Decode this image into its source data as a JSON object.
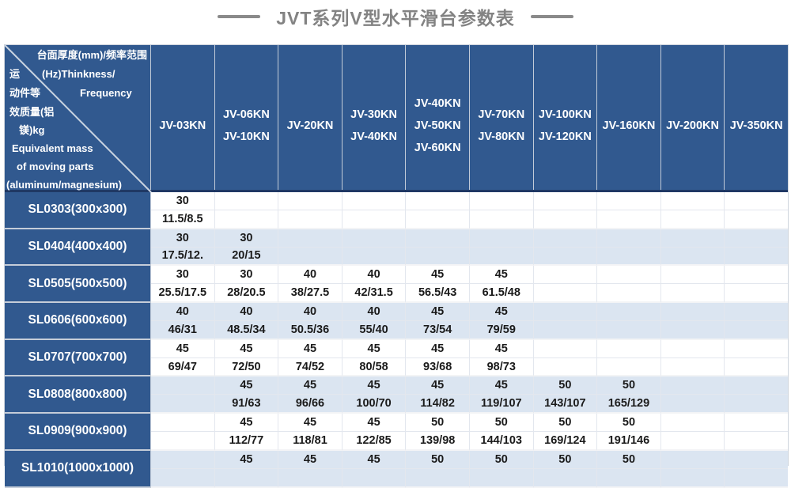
{
  "title": {
    "text": "JVT系列V型水平滑台参数表"
  },
  "colors": {
    "header_blue": "#31598F",
    "alt_row_blue": "#DBE5F1",
    "header_bottom_line": "#1F3864",
    "title_gray": "#838383",
    "data_text": "#1A1A1A"
  },
  "corner": {
    "top_lines": [
      "台面厚度(mm)/频率范围",
      "(Hz)Thinkness/",
      "Frequency"
    ],
    "bottom_lines": [
      "运",
      "动件等",
      "效质量(铝",
      "镁)kg",
      "Equivalent mass",
      "of moving parts",
      "(aluminum/magnesium)"
    ]
  },
  "table": {
    "columns": [
      {
        "labels": [
          "JV-03KN"
        ]
      },
      {
        "labels": [
          "JV-06KN",
          "JV-10KN"
        ]
      },
      {
        "labels": [
          "JV-20KN"
        ]
      },
      {
        "labels": [
          "JV-30KN",
          "JV-40KN"
        ]
      },
      {
        "labels": [
          "JV-40KN",
          "JV-50KN",
          "JV-60KN"
        ]
      },
      {
        "labels": [
          "JV-70KN",
          "JV-80KN"
        ]
      },
      {
        "labels": [
          "JV-100KN",
          "JV-120KN"
        ]
      },
      {
        "labels": [
          "JV-160KN"
        ]
      },
      {
        "labels": [
          "JV-200KN"
        ]
      },
      {
        "labels": [
          "JV-350KN"
        ]
      }
    ],
    "rows": [
      {
        "model": "SL0303(300x300)",
        "thickness": [
          "30",
          "",
          "",
          "",
          "",
          "",
          "",
          "",
          "",
          ""
        ],
        "mass": [
          "11.5/8.5",
          "",
          "",
          "",
          "",
          "",
          "",
          "",
          "",
          ""
        ]
      },
      {
        "model": "SL0404(400x400)",
        "thickness": [
          "30",
          "30",
          "",
          "",
          "",
          "",
          "",
          "",
          "",
          ""
        ],
        "mass": [
          "17.5/12.",
          "20/15",
          "",
          "",
          "",
          "",
          "",
          "",
          "",
          ""
        ]
      },
      {
        "model": "SL0505(500x500)",
        "thickness": [
          "30",
          "30",
          "40",
          "40",
          "45",
          "45",
          "",
          "",
          "",
          ""
        ],
        "mass": [
          "25.5/17.5",
          "28/20.5",
          "38/27.5",
          "42/31.5",
          "56.5/43",
          "61.5/48",
          "",
          "",
          "",
          ""
        ]
      },
      {
        "model": "SL0606(600x600)",
        "thickness": [
          "40",
          "40",
          "40",
          "40",
          "45",
          "45",
          "",
          "",
          "",
          ""
        ],
        "mass": [
          "46/31",
          "48.5/34",
          "50.5/36",
          "55/40",
          "73/54",
          "79/59",
          "",
          "",
          "",
          ""
        ]
      },
      {
        "model": "SL0707(700x700)",
        "thickness": [
          "45",
          "45",
          "45",
          "45",
          "45",
          "45",
          "",
          "",
          "",
          ""
        ],
        "mass": [
          "69/47",
          "72/50",
          "74/52",
          "80/58",
          "93/68",
          "98/73",
          "",
          "",
          "",
          ""
        ]
      },
      {
        "model": "SL0808(800x800)",
        "thickness": [
          "",
          "45",
          "45",
          "45",
          "45",
          "45",
          "50",
          "50",
          "",
          ""
        ],
        "mass": [
          "",
          "91/63",
          "96/66",
          "100/70",
          "114/82",
          "119/107",
          "143/107",
          "165/129",
          "",
          ""
        ]
      },
      {
        "model": "SL0909(900x900)",
        "thickness": [
          "",
          "45",
          "45",
          "45",
          "50",
          "50",
          "50",
          "50",
          "",
          ""
        ],
        "mass": [
          "",
          "112/77",
          "118/81",
          "122/85",
          "139/98",
          "144/103",
          "169/124",
          "191/146",
          "",
          ""
        ]
      },
      {
        "model": "SL1010(1000x1000)",
        "thickness": [
          "",
          "45",
          "45",
          "45",
          "50",
          "50",
          "50",
          "50",
          "",
          ""
        ],
        "mass": [
          "",
          "",
          "",
          "",
          "",
          "",
          "",
          "",
          "",
          ""
        ]
      }
    ]
  }
}
